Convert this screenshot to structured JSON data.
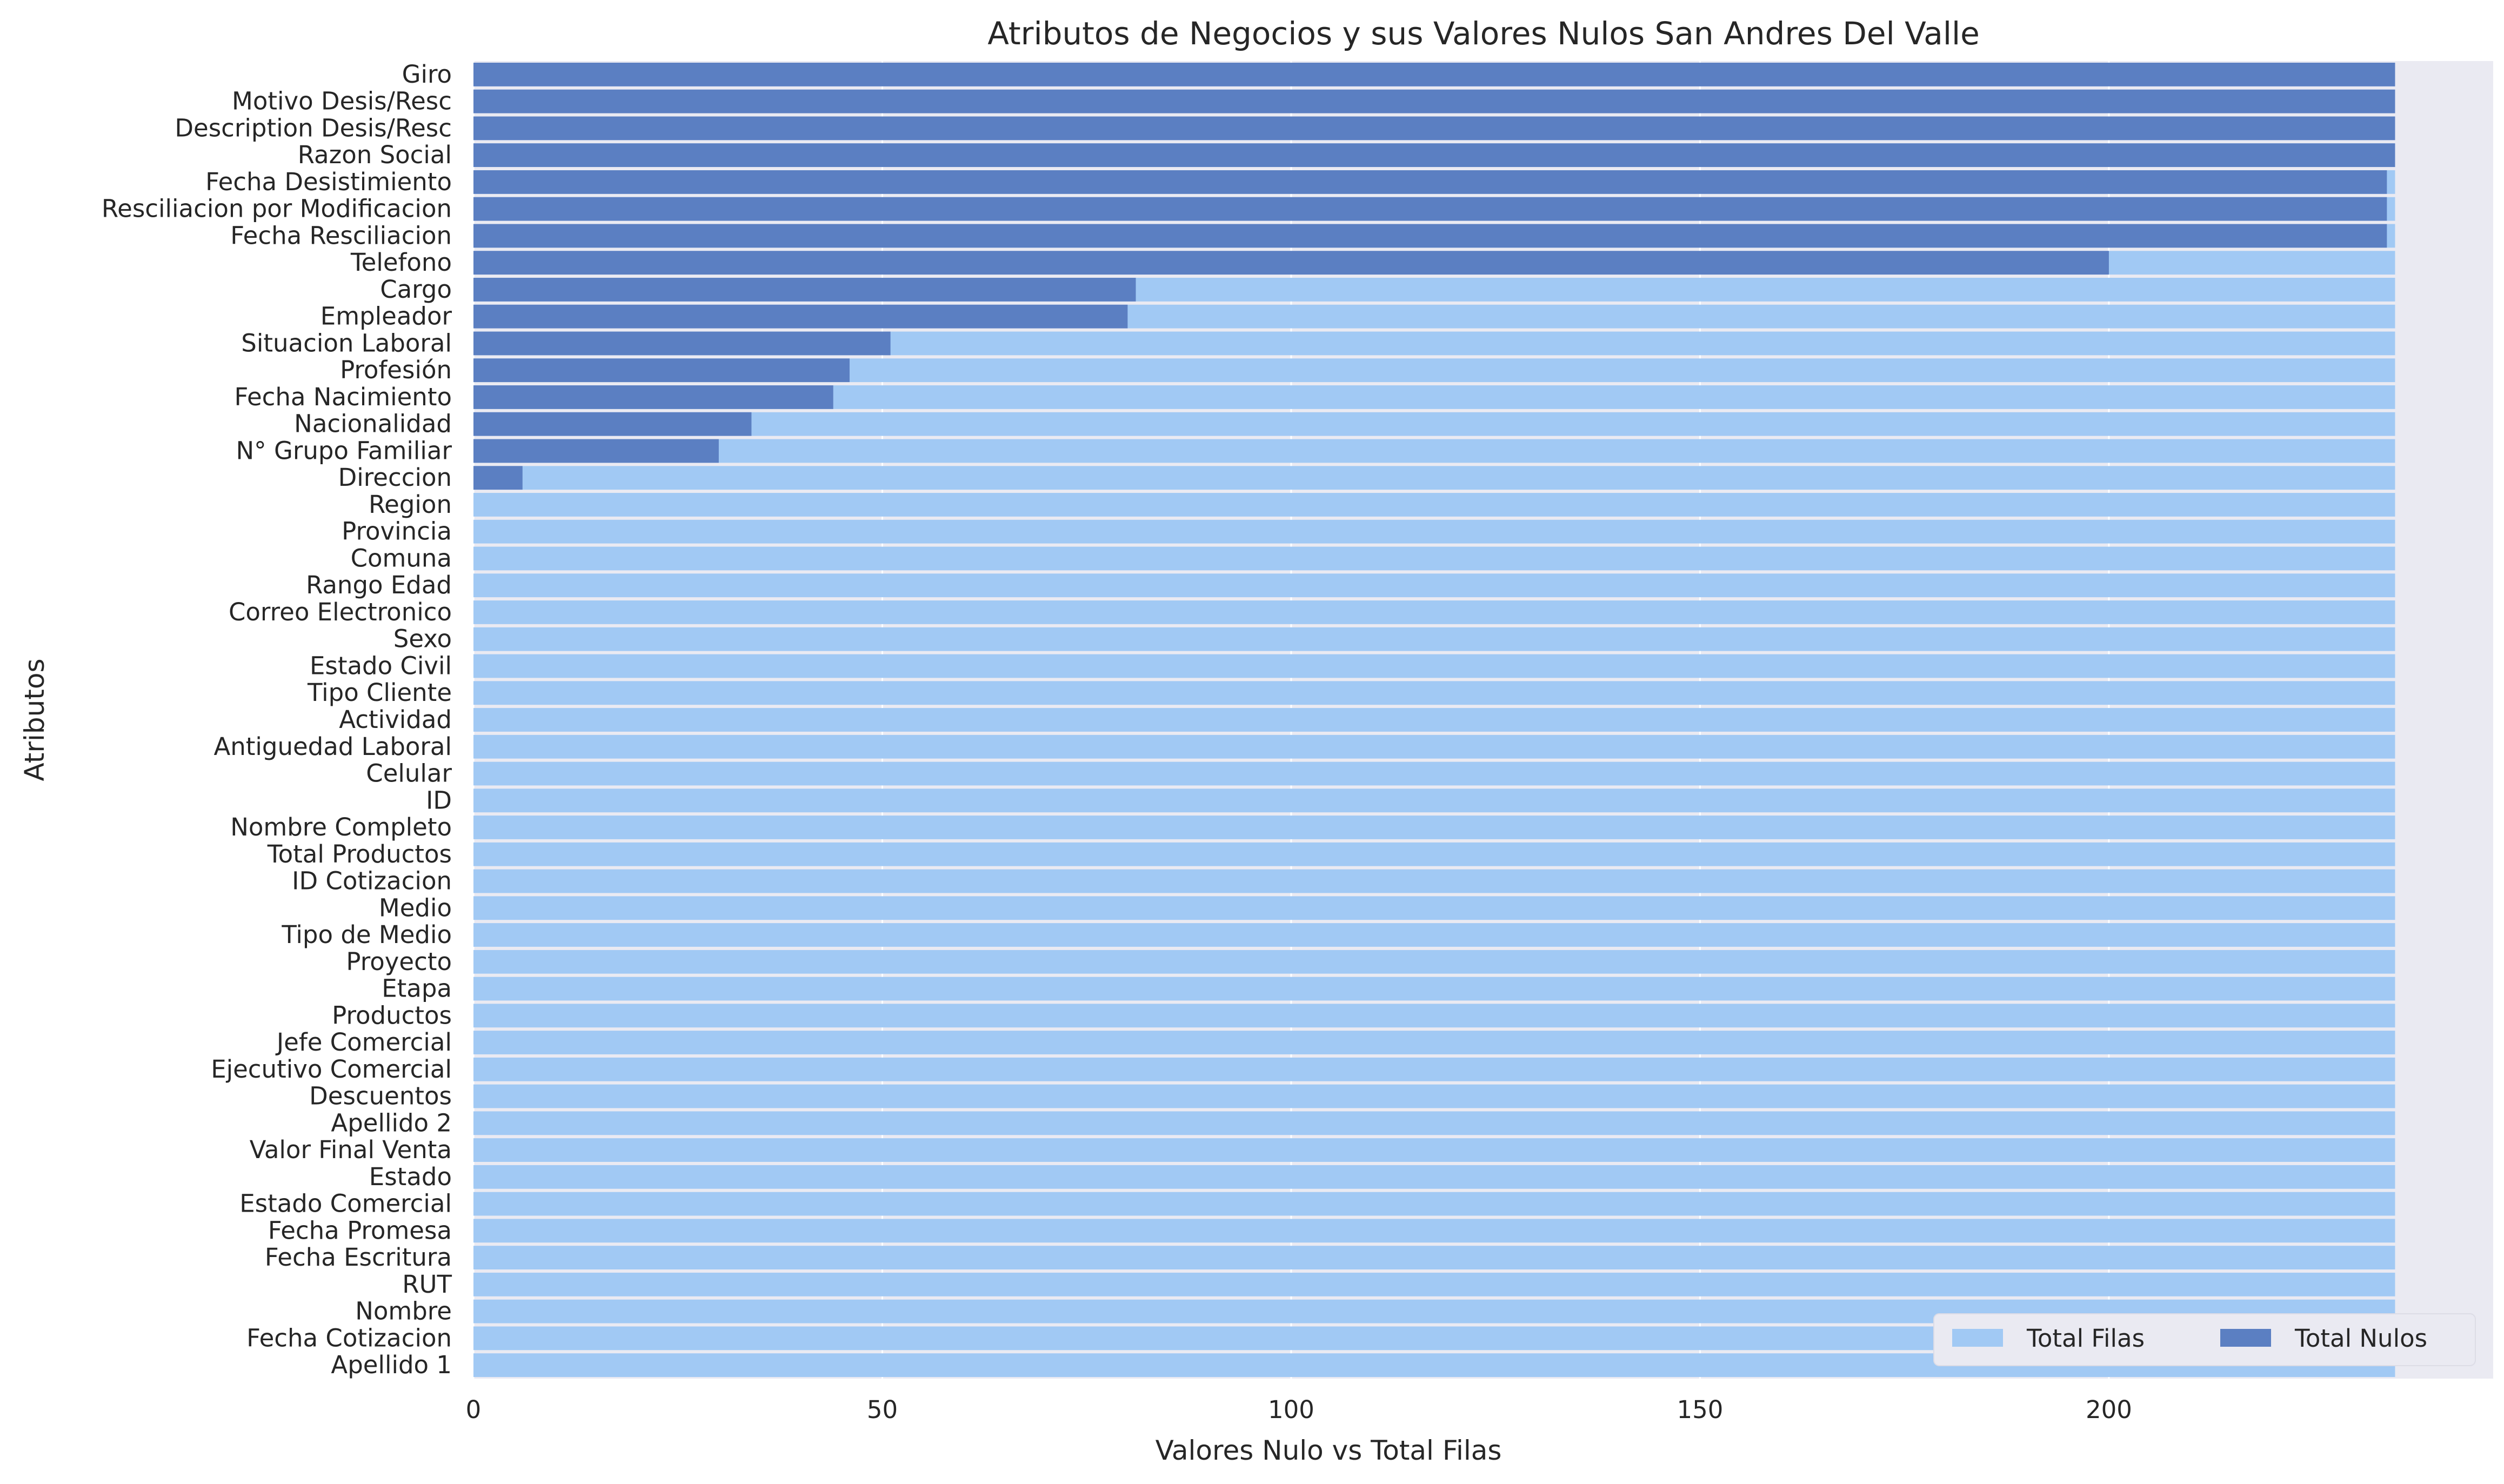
{
  "chart_data": {
    "type": "bar",
    "orientation": "horizontal",
    "title": "Atributos de Negocios y sus Valores Nulos San Andres Del Valle",
    "xlabel": "Valores Nulo vs Total Filas",
    "ylabel": "Atributos",
    "xlim": [
      0,
      247
    ],
    "xticks": [
      0,
      50,
      100,
      150,
      200
    ],
    "grid": true,
    "legend": {
      "position": "lower-right"
    },
    "colors": {
      "total": "#a1c9f4",
      "nulls": "#5b7fc2",
      "plot_bg": "#eaeaf2"
    },
    "categories": [
      "Giro",
      "Motivo Desis/Resc",
      "Description Desis/Resc",
      "Razon Social",
      "Fecha Desistimiento",
      "Resciliacion por Modificacion",
      "Fecha Resciliacion",
      "Telefono",
      "Cargo",
      "Empleador",
      "Situacion Laboral",
      "Profesión",
      "Fecha Nacimiento",
      "Nacionalidad",
      "N° Grupo Familiar",
      "Direccion",
      "Region",
      "Provincia",
      "Comuna",
      "Rango Edad",
      "Correo Electronico",
      "Sexo",
      "Estado Civil",
      "Tipo Cliente",
      "Actividad",
      "Antiguedad Laboral",
      "Celular",
      "ID",
      "Nombre Completo",
      "Total Productos",
      "ID Cotizacion",
      "Medio",
      "Tipo de Medio",
      "Proyecto",
      "Etapa",
      "Productos",
      "Jefe Comercial",
      "Ejecutivo Comercial",
      "Descuentos",
      "Apellido 2",
      "Valor Final Venta",
      "Estado",
      "Estado Comercial",
      "Fecha Promesa",
      "Fecha Escritura",
      "RUT",
      "Nombre",
      "Fecha Cotizacion",
      "Apellido 1"
    ],
    "series": [
      {
        "name": "Total Filas",
        "values": [
          235,
          235,
          235,
          235,
          235,
          235,
          235,
          235,
          235,
          235,
          235,
          235,
          235,
          235,
          235,
          235,
          235,
          235,
          235,
          235,
          235,
          235,
          235,
          235,
          235,
          235,
          235,
          235,
          235,
          235,
          235,
          235,
          235,
          235,
          235,
          235,
          235,
          235,
          235,
          235,
          235,
          235,
          235,
          235,
          235,
          235,
          235,
          235,
          235
        ]
      },
      {
        "name": "Total Nulos",
        "values": [
          235,
          235,
          235,
          235,
          234,
          234,
          234,
          200,
          81,
          80,
          51,
          46,
          44,
          34,
          30,
          6,
          0,
          0,
          0,
          0,
          0,
          0,
          0,
          0,
          0,
          0,
          0,
          0,
          0,
          0,
          0,
          0,
          0,
          0,
          0,
          0,
          0,
          0,
          0,
          0,
          0,
          0,
          0,
          0,
          0,
          0,
          0,
          0,
          0
        ]
      }
    ]
  }
}
